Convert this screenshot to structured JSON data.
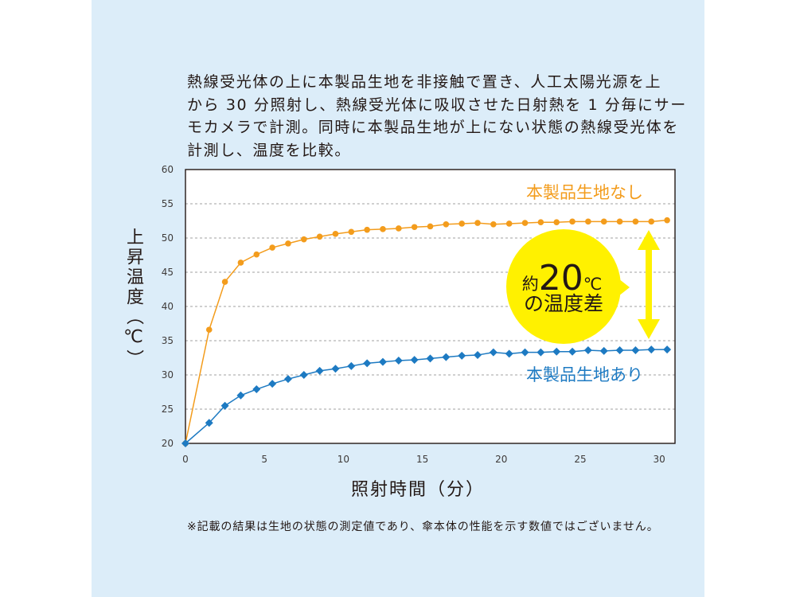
{
  "theme": {
    "panel_background": "#dcedf9",
    "text_color": "#231815",
    "grid_color": "#b4b4b4"
  },
  "description": {
    "lines": [
      "熱線受光体の上に本製品生地を非接触で置き、人工太陽光源を上",
      "から 30 分照射し、熱線受光体に吸収させた日射熱を 1 分毎にサー",
      "モカメラで計測。同時に本製品生地が上にない状態の熱線受光体を",
      "計測し、温度を比較。"
    ]
  },
  "chart_data": {
    "type": "line",
    "xlabel": "照射時間（分）",
    "ylabel": "上昇温度（℃）",
    "xlim": [
      0,
      31
    ],
    "ylim": [
      20,
      60
    ],
    "x_ticks": [
      0,
      5,
      10,
      15,
      20,
      25,
      30
    ],
    "y_ticks": [
      20,
      25,
      30,
      35,
      40,
      45,
      50,
      55,
      60
    ],
    "grid": true,
    "x": [
      0,
      1.5,
      2.5,
      3.5,
      4.5,
      5.5,
      6.5,
      7.5,
      8.5,
      9.5,
      10.5,
      11.5,
      12.5,
      13.5,
      14.5,
      15.5,
      16.5,
      17.5,
      18.5,
      19.5,
      20.5,
      21.5,
      22.5,
      23.5,
      24.5,
      25.5,
      26.5,
      27.5,
      28.5,
      29.5,
      30.5
    ],
    "series": [
      {
        "name": "本製品生地なし",
        "color": "#f39c1c",
        "marker": "circle",
        "values": [
          20,
          36.6,
          43.6,
          46.4,
          47.6,
          48.6,
          49.2,
          49.8,
          50.2,
          50.6,
          50.9,
          51.2,
          51.3,
          51.4,
          51.6,
          51.7,
          52.0,
          52.1,
          52.2,
          52.0,
          52.1,
          52.2,
          52.3,
          52.3,
          52.4,
          52.4,
          52.4,
          52.4,
          52.4,
          52.4,
          52.6
        ]
      },
      {
        "name": "本製品生地あり",
        "color": "#1d7ac2",
        "marker": "diamond",
        "values": [
          20,
          23.0,
          25.5,
          27.0,
          27.9,
          28.7,
          29.4,
          30.0,
          30.6,
          30.9,
          31.3,
          31.7,
          31.9,
          32.1,
          32.2,
          32.4,
          32.6,
          32.8,
          32.9,
          33.3,
          33.1,
          33.3,
          33.3,
          33.4,
          33.4,
          33.6,
          33.5,
          33.6,
          33.6,
          33.7,
          33.7
        ]
      }
    ],
    "annotation": {
      "prefix": "約",
      "value": "20",
      "unit": "℃",
      "suffix": "の温度差",
      "color": "#fff100"
    }
  },
  "footnote": "※記載の結果は生地の状態の測定値であり、傘本体の性能を示す数値ではございません。"
}
